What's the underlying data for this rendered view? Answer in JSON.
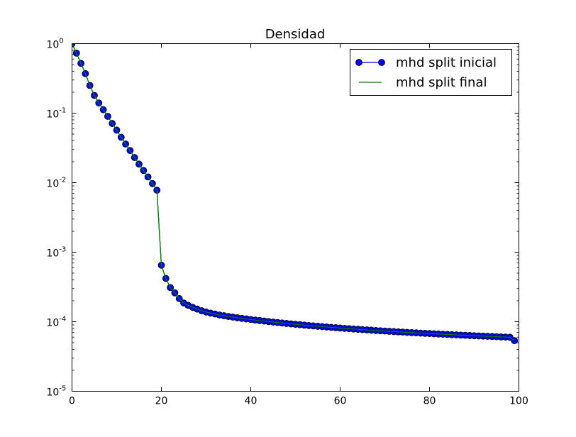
{
  "chart_data": {
    "type": "line",
    "title": "Densidad",
    "xlabel": "",
    "ylabel": "",
    "xlim": [
      0,
      100
    ],
    "ylim": [
      1e-05,
      1
    ],
    "yscale": "log",
    "grid": false,
    "legend_position": "top-right",
    "x_ticks": [
      {
        "value": 0,
        "label": "0"
      },
      {
        "value": 20,
        "label": "20"
      },
      {
        "value": 40,
        "label": "40"
      },
      {
        "value": 60,
        "label": "60"
      },
      {
        "value": 80,
        "label": "80"
      },
      {
        "value": 100,
        "label": "100"
      }
    ],
    "y_ticks": [
      {
        "value": 1e-05,
        "base": "10",
        "exp": "-5"
      },
      {
        "value": 0.0001,
        "base": "10",
        "exp": "-4"
      },
      {
        "value": 0.001,
        "base": "10",
        "exp": "-3"
      },
      {
        "value": 0.01,
        "base": "10",
        "exp": "-2"
      },
      {
        "value": 0.1,
        "base": "10",
        "exp": "-1"
      },
      {
        "value": 1,
        "base": "10",
        "exp": "0"
      }
    ],
    "series": [
      {
        "name": "mhd split inicial",
        "color": "#0000ff",
        "marker_edge": "#000000",
        "style": "line-markers",
        "x": [
          0,
          1,
          2,
          3,
          4,
          5,
          6,
          7,
          8,
          9,
          10,
          11,
          12,
          13,
          14,
          15,
          16,
          17,
          18,
          19,
          20,
          21,
          22,
          23,
          24,
          25,
          26,
          27,
          28,
          29,
          30,
          31,
          32,
          33,
          34,
          35,
          36,
          37,
          38,
          39,
          40,
          41,
          42,
          43,
          44,
          45,
          46,
          47,
          48,
          49,
          50,
          51,
          52,
          53,
          54,
          55,
          56,
          57,
          58,
          59,
          60,
          61,
          62,
          63,
          64,
          65,
          66,
          67,
          68,
          69,
          70,
          71,
          72,
          73,
          74,
          75,
          76,
          77,
          78,
          79,
          80,
          81,
          82,
          83,
          84,
          85,
          86,
          87,
          88,
          89,
          90,
          91,
          92,
          93,
          94,
          95,
          96,
          97,
          98,
          99
        ],
        "y": [
          1.0,
          0.73,
          0.52,
          0.37,
          0.25,
          0.18,
          0.14,
          0.112,
          0.09,
          0.071,
          0.057,
          0.045,
          0.036,
          0.029,
          0.023,
          0.0185,
          0.015,
          0.0121,
          0.0097,
          0.0078,
          0.00065,
          0.00042,
          0.00031,
          0.00026,
          0.000215,
          0.000186,
          0.000172,
          0.000161,
          0.000152,
          0.000144,
          0.000138,
          0.000133,
          0.000129,
          0.000125,
          0.000122,
          0.000119,
          0.0001165,
          0.000114,
          0.0001118,
          0.0001097,
          0.0001077,
          0.0001058,
          0.000104,
          0.0001022,
          0.0001005,
          9.89e-05,
          9.74e-05,
          9.59e-05,
          9.45e-05,
          9.31e-05,
          9.18e-05,
          9.06e-05,
          8.94e-05,
          8.82e-05,
          8.71e-05,
          8.6e-05,
          8.5e-05,
          8.4e-05,
          8.3e-05,
          8.21e-05,
          8.12e-05,
          8.03e-05,
          7.94e-05,
          7.86e-05,
          7.78e-05,
          7.7e-05,
          7.62e-05,
          7.55e-05,
          7.48e-05,
          7.41e-05,
          7.34e-05,
          7.28e-05,
          7.21e-05,
          7.15e-05,
          7.09e-05,
          7.03e-05,
          6.97e-05,
          6.92e-05,
          6.86e-05,
          6.81e-05,
          6.76e-05,
          6.71e-05,
          6.66e-05,
          6.61e-05,
          6.56e-05,
          6.51e-05,
          6.47e-05,
          6.42e-05,
          6.38e-05,
          6.33e-05,
          6.29e-05,
          6.25e-05,
          6.21e-05,
          6.17e-05,
          6.13e-05,
          6.09e-05,
          6.05e-05,
          6.01e-05,
          5.97e-05,
          5.35e-05
        ]
      },
      {
        "name": "mhd split final",
        "color": "#008000",
        "style": "line",
        "x": [
          0,
          1,
          2,
          3,
          4,
          5,
          6,
          7,
          8,
          9,
          10,
          11,
          12,
          13,
          14,
          15,
          16,
          17,
          18,
          19,
          20,
          21,
          22,
          23,
          24,
          25,
          26,
          27,
          28,
          29,
          30,
          31,
          32,
          33,
          34,
          35,
          36,
          37,
          38,
          39,
          40,
          41,
          42,
          43,
          44,
          45,
          46,
          47,
          48,
          49,
          50,
          51,
          52,
          53,
          54,
          55,
          56,
          57,
          58,
          59,
          60,
          61,
          62,
          63,
          64,
          65,
          66,
          67,
          68,
          69,
          70,
          71,
          72,
          73,
          74,
          75,
          76,
          77,
          78,
          79,
          80,
          81,
          82,
          83,
          84,
          85,
          86,
          87,
          88,
          89,
          90,
          91,
          92,
          93,
          94,
          95,
          96,
          97,
          98,
          99
        ],
        "y": [
          1.0,
          0.73,
          0.52,
          0.37,
          0.25,
          0.18,
          0.14,
          0.112,
          0.09,
          0.071,
          0.057,
          0.045,
          0.036,
          0.029,
          0.023,
          0.0185,
          0.015,
          0.0121,
          0.0097,
          0.0078,
          0.00065,
          0.00042,
          0.00031,
          0.00026,
          0.000215,
          0.000186,
          0.000172,
          0.000161,
          0.000152,
          0.000144,
          0.000138,
          0.000133,
          0.000129,
          0.000125,
          0.000122,
          0.000119,
          0.0001165,
          0.000114,
          0.0001118,
          0.0001097,
          0.0001077,
          0.0001058,
          0.000104,
          0.0001022,
          0.0001005,
          9.89e-05,
          9.74e-05,
          9.59e-05,
          9.45e-05,
          9.31e-05,
          9.18e-05,
          9.06e-05,
          8.94e-05,
          8.82e-05,
          8.71e-05,
          8.6e-05,
          8.5e-05,
          8.4e-05,
          8.3e-05,
          8.21e-05,
          8.12e-05,
          8.03e-05,
          7.94e-05,
          7.86e-05,
          7.78e-05,
          7.7e-05,
          7.62e-05,
          7.55e-05,
          7.48e-05,
          7.41e-05,
          7.34e-05,
          7.28e-05,
          7.21e-05,
          7.15e-05,
          7.09e-05,
          7.03e-05,
          6.97e-05,
          6.92e-05,
          6.86e-05,
          6.81e-05,
          6.76e-05,
          6.71e-05,
          6.66e-05,
          6.61e-05,
          6.56e-05,
          6.51e-05,
          6.47e-05,
          6.42e-05,
          6.38e-05,
          6.33e-05,
          6.29e-05,
          6.25e-05,
          6.21e-05,
          6.17e-05,
          6.13e-05,
          6.09e-05,
          6.05e-05,
          6.01e-05,
          5.97e-05,
          5.35e-05
        ]
      }
    ]
  }
}
